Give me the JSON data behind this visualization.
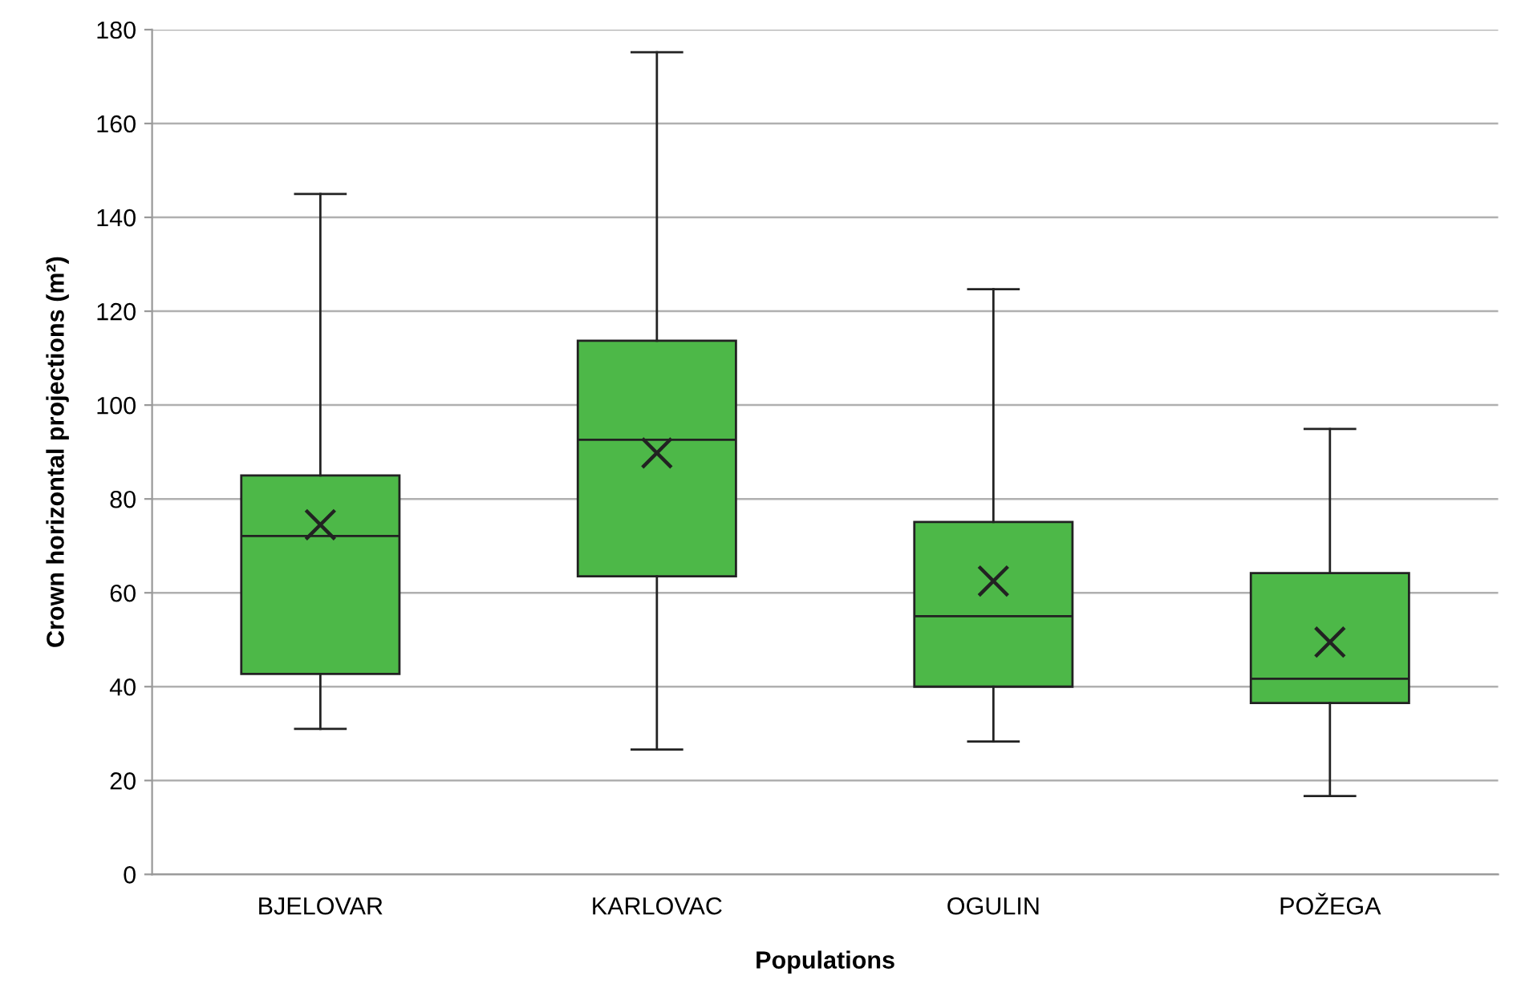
{
  "chart_data": {
    "type": "box",
    "xlabel": "Populations",
    "ylabel": "Crown horizontal projections (m²)",
    "categories": [
      "BJELOVAR",
      "KARLOVAC",
      "OGULIN",
      "POŽEGA"
    ],
    "boxes": [
      {
        "low": 31,
        "q1": 42.7,
        "median": 72.1,
        "q3": 85,
        "high": 145,
        "mean": 74.5
      },
      {
        "low": 26.6,
        "q1": 63.5,
        "median": 92.6,
        "q3": 113.7,
        "high": 175.2,
        "mean": 89.8
      },
      {
        "low": 28.3,
        "q1": 40,
        "median": 55,
        "q3": 75.1,
        "high": 124.7,
        "mean": 62.5
      },
      {
        "low": 16.7,
        "q1": 36.5,
        "median": 41.7,
        "q3": 64.2,
        "high": 94.9,
        "mean": 49.5
      }
    ],
    "color": "#4db848",
    "ylim": [
      0,
      180
    ],
    "yticks": [
      0,
      20,
      40,
      60,
      80,
      100,
      120,
      140,
      160,
      180
    ],
    "grid": "y"
  }
}
